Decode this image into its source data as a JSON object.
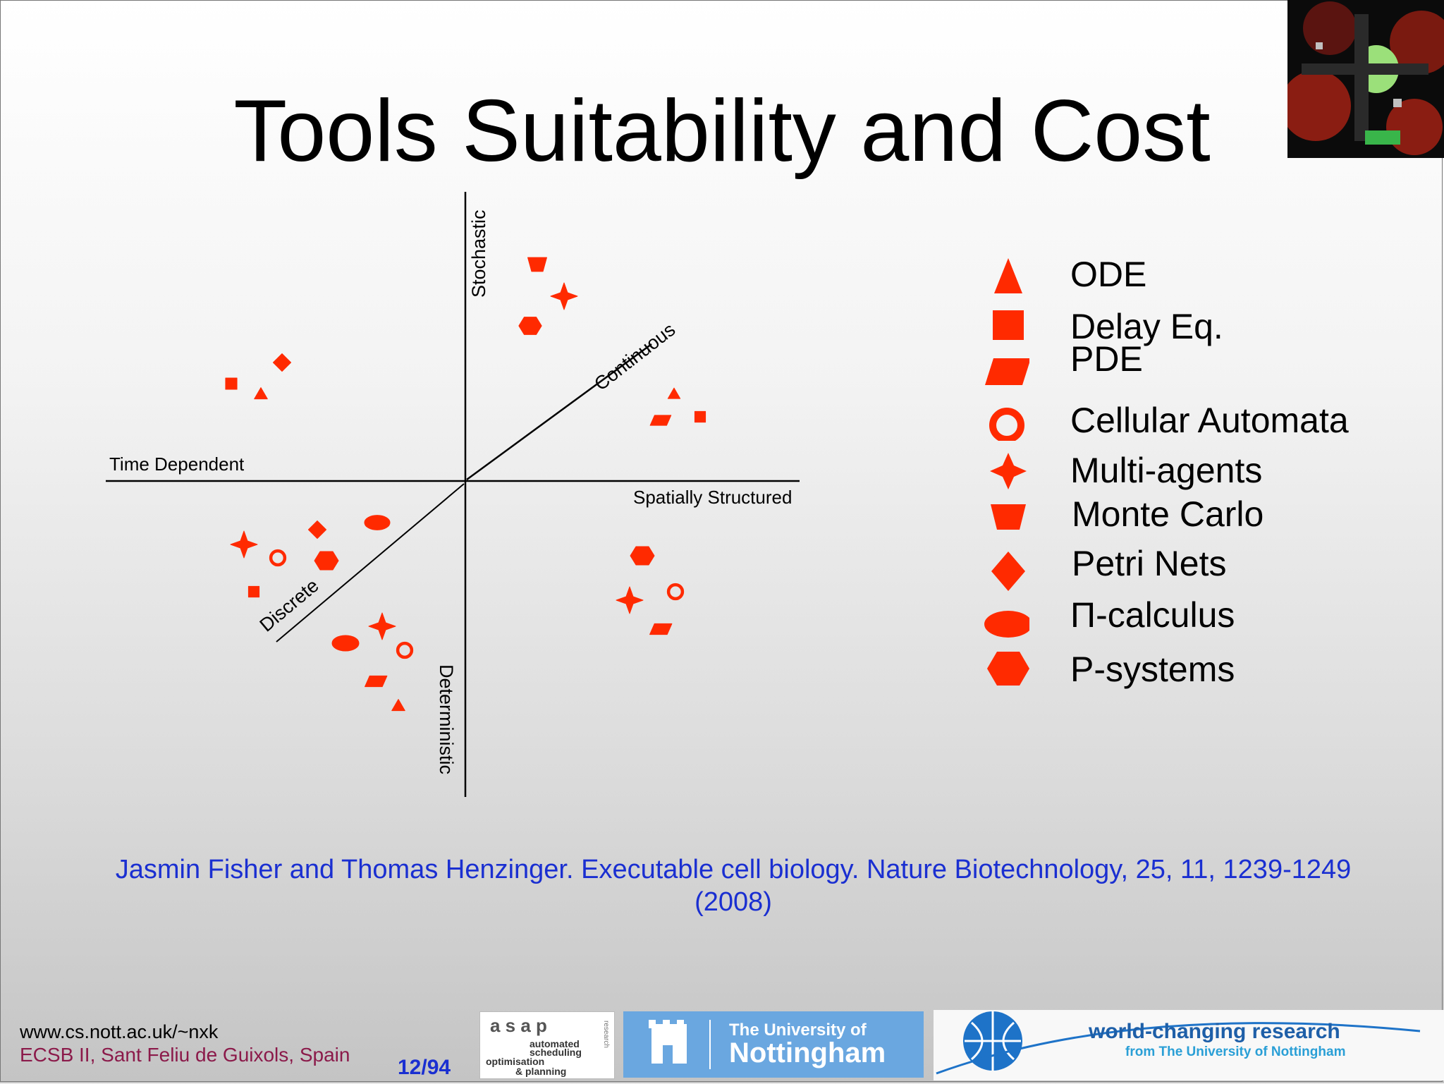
{
  "slide": {
    "title": "Tools Suitability and Cost",
    "citation_line1": "Jasmin Fisher and Thomas Henzinger. Executable cell biology. Nature Biotechnology, 25, 11, 1239-1249",
    "citation_line2": "(2008)",
    "footer_url": "www.cs.nott.ac.uk/~nxk",
    "footer_event": "ECSB II, Sant Feliu de Guixols, Spain",
    "page_number": "12/94"
  },
  "axes": {
    "stochastic": "Stochastic",
    "deterministic": "Deterministic",
    "time_dependent": "Time Dependent",
    "spatially_structured": "Spatially Structured",
    "continuous": "Continuous",
    "discrete": "Discrete"
  },
  "legend": [
    {
      "shape": "triangle",
      "label": "ODE"
    },
    {
      "shape": "square",
      "label": "Delay Eq."
    },
    {
      "shape": "parallelogram",
      "label": "PDE"
    },
    {
      "shape": "ring",
      "label": "Cellular Automata"
    },
    {
      "shape": "star",
      "label": "Multi-agents"
    },
    {
      "shape": "trapezoid",
      "label": "Monte Carlo"
    },
    {
      "shape": "diamond",
      "label": "Petri Nets"
    },
    {
      "shape": "ellipse",
      "label": "Π-calculus"
    },
    {
      "shape": "hexagon",
      "label": "P-systems"
    }
  ],
  "logos": {
    "asap_title": "a s a p",
    "asap_side": "research",
    "asap_line1": "automated",
    "asap_line2": "scheduling",
    "asap_line3": "optimisation",
    "asap_line4": "& planning",
    "nottingham_line1": "The University of",
    "nottingham_line2": "Nottingham",
    "wcr_line1": "world-changing research",
    "wcr_line2": "from The University of Nottingham"
  },
  "colors": {
    "marker": "#ff2a00",
    "citation": "#1a2fd1",
    "footer_event": "#8b1a4a"
  }
}
